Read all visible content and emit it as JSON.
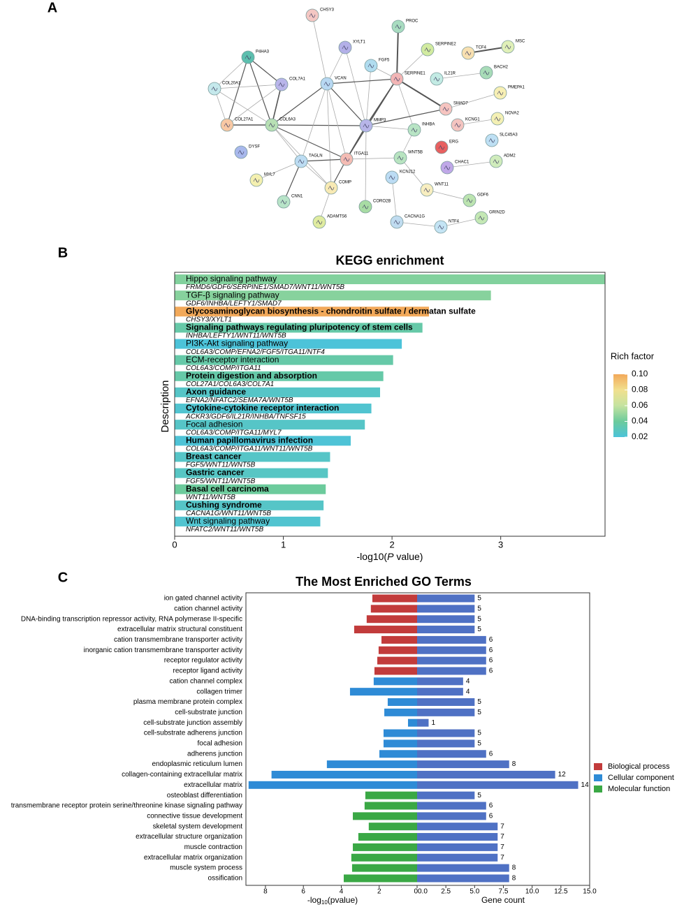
{
  "panel_labels": [
    "A",
    "B",
    "C"
  ],
  "network": {
    "nodes": [
      "CHSY3",
      "PROC",
      "XYLT1",
      "SERPINE2",
      "TCF4",
      "MSC",
      "P4HA3",
      "FGF5",
      "COL7A1",
      "VCAN",
      "SERPINE1",
      "IL21R",
      "BACH2",
      "PMEPA1",
      "COL20A1",
      "SMAD7",
      "NOVA2",
      "COL27A1",
      "COL6A3",
      "MMP3",
      "INHBA",
      "KCNG1",
      "SLC45A3",
      "DYSF",
      "ERG",
      "TAGLN",
      "ITGA11",
      "WNT5B",
      "CHAC1",
      "ADM2",
      "MYL7",
      "KCNJ12",
      "COMP",
      "WNT11",
      "GDF6",
      "CNN1",
      "CORO2B",
      "ADAMTS6",
      "CACNA1G",
      "NTF4",
      "GRIN2D"
    ],
    "node_colors": [
      "#f4c7c3",
      "#a8dcc0",
      "#b3b0e8",
      "#d2eba0",
      "#f8e0b0",
      "#e0f0b8",
      "#5cbfae",
      "#b0dcef",
      "#b9b5ea",
      "#b8d8f2",
      "#f2b5b5",
      "#c3ebe4",
      "#a8dcb8",
      "#f7efb4",
      "#c5e9ec",
      "#f6c4c0",
      "#f4f0b4",
      "#f8c8a4",
      "#b8e0b4",
      "#b7b5e8",
      "#b8e4c4",
      "#f4c4c0",
      "#bee0f4",
      "#a8b8ec",
      "#e86060",
      "#bcdcf2",
      "#f4bcb4",
      "#b8e4c0",
      "#c0a8e8",
      "#d0ecbc",
      "#f4f0b0",
      "#bcdcf4",
      "#f8eab4",
      "#f8eec0",
      "#bce4b0",
      "#b8e4c8",
      "#a8dca4",
      "#e0eca0",
      "#c0dcf0",
      "#c4e4f4",
      "#c4e8b4"
    ]
  },
  "chart_data": [
    {
      "type": "bar",
      "orientation": "horizontal",
      "title": "KEGG enrichment",
      "ylabel": "Description",
      "xlabel_parts": [
        "-log10(",
        "P",
        " value)"
      ],
      "categories": [
        "Hippo signaling pathway",
        "TGF-β signaling pathway",
        "Glycosaminoglycan biosynthesis - chondroitin sulfate / dermatan sulfate",
        "Signaling pathways regulating pluripotency of stem cells",
        "PI3K-Akt signaling pathway",
        "ECM-receptor interaction",
        "Protein digestion and absorption",
        "Axon guidance",
        "Cytokine-cytokine receptor interaction",
        "Focal adhesion",
        "Human papillomavirus infection",
        "Breast cancer",
        "Gastric cancer",
        "Basal cell carcinoma",
        "Cushing syndrome",
        "Wnt signaling pathway"
      ],
      "genes": [
        "FRMD6/GDF6/SERPINE1/SMAD7/WNT11/WNT5B",
        "GDF6/INHBA/LEFTY1/SMAD7",
        "CHSY3/XYLT1",
        "INHBA/LEFTY1/WNT11/WNT5B",
        "COL6A3/COMP/EFNA2/FGF5/ITGA11/NTF4",
        "COL6A3/COMP/ITGA11",
        "COL27A1/COL6A3/COL7A1",
        "EFNA2/NFATC2/SEMA7A/WNT5B",
        "ACKR3/GDF6/IL21R/INHBA/TNFSF15",
        "COL6A3/COMP/ITGA11/MYL7",
        "COL6A3/COMP/ITGA11/WNT11/WNT5B",
        "FGF5/WNT11/WNT5B",
        "FGF5/WNT11/WNT5B",
        "WNT11/WNT5B",
        "CACNA1G/WNT11/WNT5B",
        "NFATC2/WNT11/WNT5B"
      ],
      "label_colors": [
        "#d7302c",
        "#d7302c",
        "#000000",
        "#000000",
        "#d7302c",
        "#d7302c",
        "#000000",
        "#000000",
        "#000000",
        "#d7302c",
        "#000000",
        "#000000",
        "#000000",
        "#000000",
        "#000000",
        "#d7302c"
      ],
      "values": [
        3.96,
        2.91,
        2.34,
        2.28,
        2.09,
        2.01,
        1.92,
        1.89,
        1.81,
        1.75,
        1.62,
        1.43,
        1.41,
        1.39,
        1.37,
        1.34
      ],
      "rich_factor": [
        0.045,
        0.046,
        0.1,
        0.036,
        0.02,
        0.036,
        0.036,
        0.026,
        0.023,
        0.026,
        0.021,
        0.026,
        0.027,
        0.04,
        0.026,
        0.023
      ],
      "colorbar": {
        "title": "Rich factor",
        "lim": [
          0.02,
          0.1
        ],
        "ticks": [
          0.02,
          0.04,
          0.06,
          0.08,
          {
            "value": 0.1,
            "label": "0.10"
          }
        ],
        "colors": [
          "#4cc3d9",
          "#6ccb9c",
          "#c5e3a0",
          "#f1e08e",
          "#f2a95a"
        ]
      },
      "xlim": [
        0,
        3.96
      ],
      "xticks": [
        0,
        1,
        2,
        3
      ]
    },
    {
      "type": "diverging_bar",
      "title": "The Most Enriched GO Terms",
      "categories": [
        "ion gated channel activity",
        "cation channel activity",
        "DNA-binding transcription repressor activity, RNA polymerase II-specific",
        "extracellular matrix structural constituent",
        "cation transmembrane transporter activity",
        "inorganic cation transmembrane transporter activity",
        "receptor regulator activity",
        "receptor ligand activity",
        "cation channel complex",
        "collagen trimer",
        "plasma membrane protein complex",
        "cell-substrate junction",
        "cell-substrate junction assembly",
        "cell-substrate adherens junction",
        "focal adhesion",
        "adherens junction",
        "endoplasmic reticulum lumen",
        "collagen-containing extracellular matrix",
        "extracellular matrix",
        "osteoblast differentiation",
        "transmembrane receptor protein serine/threonine kinase signaling pathway",
        "connective tissue development",
        "skeletal system development",
        "extracellular structure organization",
        "muscle contraction",
        "extracellular matrix organization",
        "muscle system process",
        "ossification"
      ],
      "groups": [
        {
          "name": "Biological process",
          "color": "#c23b3b"
        },
        {
          "name": "Cellular component",
          "color": "#2e8bd6"
        },
        {
          "name": "Molecular function",
          "color": "#3aa845"
        }
      ],
      "group_index": [
        0,
        0,
        0,
        0,
        0,
        0,
        0,
        0,
        1,
        1,
        1,
        1,
        1,
        1,
        1,
        1,
        1,
        1,
        1,
        2,
        2,
        2,
        2,
        2,
        2,
        2,
        2,
        2
      ],
      "pvalue_log": [
        2.36,
        2.44,
        2.66,
        3.32,
        1.88,
        2.03,
        2.1,
        2.25,
        2.29,
        3.54,
        1.55,
        1.73,
        0.48,
        1.77,
        1.77,
        1.99,
        4.76,
        7.68,
        8.89,
        2.73,
        2.77,
        3.39,
        2.55,
        3.1,
        3.39,
        3.47,
        3.43,
        3.87
      ],
      "gene_count": [
        5,
        5,
        5,
        5,
        6,
        6,
        6,
        6,
        4,
        4,
        5,
        5,
        1,
        5,
        5,
        6,
        8,
        12,
        14,
        5,
        6,
        6,
        7,
        7,
        7,
        7,
        8,
        8
      ],
      "count_color": "#4f71c4",
      "left": {
        "xlabel_parts": [
          "-log",
          "10",
          "(pvalue)"
        ],
        "xlim": [
          0,
          9.03
        ],
        "xticks": [
          8,
          6,
          4,
          2,
          0
        ]
      },
      "right": {
        "xlabel": "Gene count",
        "xlim": [
          0,
          15
        ],
        "xticks": [
          {
            "value": 0,
            "label": "0.0"
          },
          2.5,
          {
            "value": 5,
            "label": "5.0"
          },
          7.5,
          {
            "value": 10,
            "label": "10.0"
          },
          12.5,
          {
            "value": 15,
            "label": "15.0"
          }
        ]
      }
    }
  ]
}
